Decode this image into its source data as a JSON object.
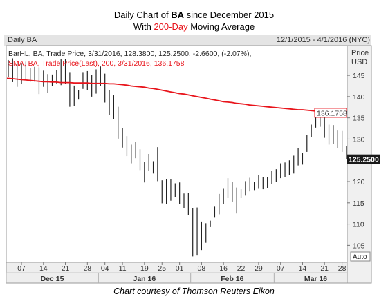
{
  "title": {
    "prefix": "Daily Chart of ",
    "ticker": "BA",
    "mid": " since December 2015",
    "line2_prefix": "With ",
    "line2_accent": "200-Day",
    "line2_suffix": " Moving Average",
    "accent_color": "#e8141b"
  },
  "chart_header": {
    "left": "Daily BA",
    "right": "12/1/2015 - 4/1/2016 (NYC)"
  },
  "legend": {
    "bar_line": "BarHL, BA, Trade Price, 3/31/2016, 128.3800, 125.2500, -2.6600, (-2.07%),",
    "sma_line": "SMA, BA, Trade Price(Last),  200,  3/31/2016, 136.1758",
    "bar_color": "#222222",
    "sma_color": "#e8141b"
  },
  "axis_labels": {
    "price": "Price",
    "currency": "USD",
    "auto": "Auto"
  },
  "price_tags": {
    "sma": "136.1758",
    "last": "125.2500"
  },
  "caption": "Chart courtesy of Thomson Reuters Eikon",
  "chart_data": {
    "type": "bar",
    "title": "Daily Chart of BA since December 2015",
    "subtitle": "With 200-Day Moving Average",
    "y_ticks": [
      105,
      110,
      115,
      120,
      125,
      130,
      135,
      140,
      145
    ],
    "ylim": [
      101,
      152
    ],
    "x_day_ticks": [
      "07",
      "14",
      "21",
      "28",
      "04",
      "11",
      "19",
      "25",
      "01",
      "08",
      "16",
      "22",
      "29",
      "07",
      "14",
      "21",
      "28"
    ],
    "x_month_ticks": [
      "Dec 15",
      "Jan 16",
      "Feb 16",
      "Mar 16"
    ],
    "series": [
      {
        "name": "BarHL, BA, Trade Price",
        "style": "high-low bars",
        "high": [
          148.6,
          149.0,
          148.4,
          147.9,
          148.2,
          146.8,
          147.0,
          146.9,
          146.1,
          145.3,
          145.2,
          146.2,
          148.9,
          148.8,
          145.6,
          142.6,
          141.6,
          145.6,
          146.0,
          145.1,
          146.4,
          147.1,
          145.4,
          141.6,
          140.3,
          137.6,
          132.6,
          130.7,
          128.7,
          129.3,
          127.6,
          124.6,
          126.5,
          124.8,
          128.1,
          120.3,
          120.5,
          120.5,
          119.6,
          119.8,
          117.2,
          117.4,
          113.8,
          113.9,
          110.6,
          110.2,
          110.8,
          114.1,
          117.1,
          118.3,
          120.8,
          119.9,
          118.6,
          118.2,
          120.1,
          120.9,
          120.0,
          121.5,
          121.0,
          121.1,
          122.5,
          122.9,
          124.3,
          124.5,
          125.0,
          126.1,
          127.8,
          126.7,
          130.9,
          133.4,
          137.3,
          136.7,
          136.2,
          133.4,
          133.3,
          132.0,
          131.9,
          128.4
        ],
        "low": [
          144.6,
          143.4,
          142.3,
          142.9,
          144.1,
          143.5,
          143.5,
          140.6,
          142.3,
          140.8,
          142.5,
          143.1,
          142.7,
          143.0,
          137.6,
          137.8,
          139.3,
          141.8,
          141.5,
          140.0,
          140.7,
          142.5,
          138.6,
          135.7,
          134.7,
          130.1,
          128.0,
          126.0,
          124.3,
          125.5,
          122.7,
          119.8,
          122.6,
          121.9,
          120.1,
          114.9,
          114.8,
          115.5,
          116.3,
          114.8,
          113.8,
          112.2,
          102.4,
          102.6,
          103.9,
          105.6,
          109.3,
          111.5,
          112.3,
          114.7,
          116.1,
          115.3,
          112.5,
          116.1,
          116.7,
          117.7,
          118.0,
          118.3,
          118.2,
          118.5,
          119.5,
          119.9,
          120.8,
          121.0,
          121.5,
          121.9,
          123.8,
          124.0,
          127.0,
          130.5,
          132.7,
          132.9,
          130.3,
          128.7,
          128.8,
          127.9,
          127.0,
          125.2
        ]
      },
      {
        "name": "SMA, BA, Trade Price(Last), 200",
        "style": "line",
        "values": [
          144.3,
          144.2,
          144.1,
          144.0,
          143.9,
          143.8,
          143.7,
          143.6,
          143.5,
          143.5,
          143.4,
          143.4,
          143.3,
          143.3,
          143.3,
          143.2,
          143.2,
          143.2,
          143.2,
          143.1,
          143.1,
          143.1,
          143.1,
          143.0,
          143.0,
          142.9,
          142.8,
          142.7,
          142.5,
          142.4,
          142.3,
          142.2,
          142.0,
          141.9,
          141.7,
          141.5,
          141.3,
          141.1,
          140.9,
          140.7,
          140.6,
          140.4,
          140.2,
          140.0,
          139.8,
          139.6,
          139.4,
          139.2,
          139.0,
          138.8,
          138.7,
          138.6,
          138.4,
          138.3,
          138.2,
          138.0,
          137.9,
          137.8,
          137.7,
          137.6,
          137.5,
          137.4,
          137.3,
          137.2,
          137.1,
          137.0,
          136.9,
          136.9,
          136.8,
          136.7,
          136.6,
          136.5,
          136.5,
          136.4,
          136.4,
          136.3,
          136.2,
          136.2
        ]
      }
    ]
  }
}
